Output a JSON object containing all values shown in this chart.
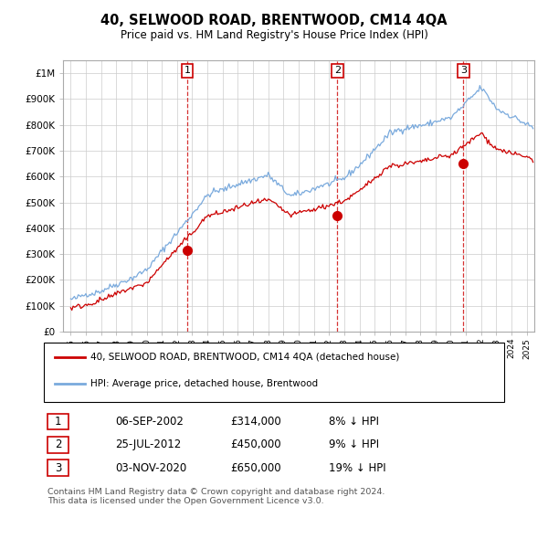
{
  "title_line1": "40, SELWOOD ROAD, BRENTWOOD, CM14 4QA",
  "title_line2": "Price paid vs. HM Land Registry's House Price Index (HPI)",
  "hpi_color": "#7aaadd",
  "price_color": "#cc0000",
  "sale_times": [
    2002.667,
    2012.542,
    2020.833
  ],
  "sale_prices": [
    314000,
    450000,
    650000
  ],
  "sale_labels": [
    "1",
    "2",
    "3"
  ],
  "legend_label_price": "40, SELWOOD ROAD, BRENTWOOD, CM14 4QA (detached house)",
  "legend_label_hpi": "HPI: Average price, detached house, Brentwood",
  "table_rows": [
    [
      "1",
      "06-SEP-2002",
      "£314,000",
      "8% ↓ HPI"
    ],
    [
      "2",
      "25-JUL-2012",
      "£450,000",
      "9% ↓ HPI"
    ],
    [
      "3",
      "03-NOV-2020",
      "£650,000",
      "19% ↓ HPI"
    ]
  ],
  "footnote": "Contains HM Land Registry data © Crown copyright and database right 2024.\nThis data is licensed under the Open Government Licence v3.0.",
  "ylim_max": 1050000,
  "yticks": [
    0,
    100000,
    200000,
    300000,
    400000,
    500000,
    600000,
    700000,
    800000,
    900000,
    1000000
  ],
  "ytick_labels": [
    "£0",
    "£100K",
    "£200K",
    "£300K",
    "£400K",
    "£500K",
    "£600K",
    "£700K",
    "£800K",
    "£900K",
    "£1M"
  ],
  "background_color": "#ffffff",
  "grid_color": "#cccccc",
  "xlim_min": 1994.5,
  "xlim_max": 2025.5,
  "xtick_years": [
    1995,
    1996,
    1997,
    1998,
    1999,
    2000,
    2001,
    2002,
    2003,
    2004,
    2005,
    2006,
    2007,
    2008,
    2009,
    2010,
    2011,
    2012,
    2013,
    2014,
    2015,
    2016,
    2017,
    2018,
    2019,
    2020,
    2021,
    2022,
    2023,
    2024,
    2025
  ]
}
